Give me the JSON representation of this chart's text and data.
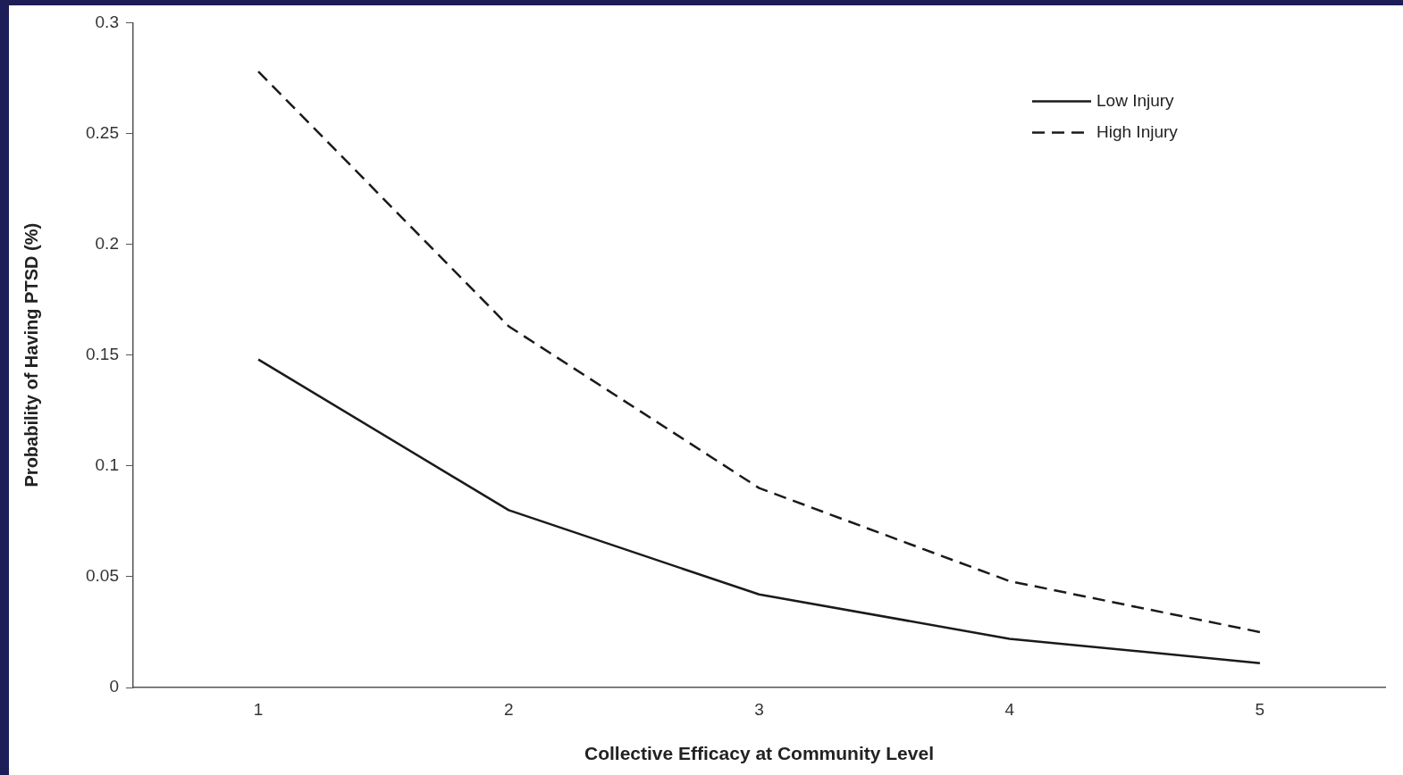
{
  "chart_data": {
    "type": "line",
    "xlabel": "Collective Efficacy at Community Level",
    "ylabel": "Probability of Having PTSD (%)",
    "categories": [
      "1",
      "2",
      "3",
      "4",
      "5"
    ],
    "series": [
      {
        "name": "Low Injury",
        "color": "#1a1a1a",
        "line_style": "solid",
        "values": [
          0.148,
          0.08,
          0.042,
          0.022,
          0.011
        ]
      },
      {
        "name": "High Injury",
        "color": "#1a1a1a",
        "line_style": "dashed",
        "values": [
          0.278,
          0.163,
          0.09,
          0.048,
          0.025
        ]
      }
    ],
    "ylim": [
      0,
      0.3
    ],
    "yticks": [
      0,
      0.05,
      0.1,
      0.15,
      0.2,
      0.25,
      0.3
    ],
    "grid": false,
    "legend": "top right",
    "marker": "none"
  }
}
